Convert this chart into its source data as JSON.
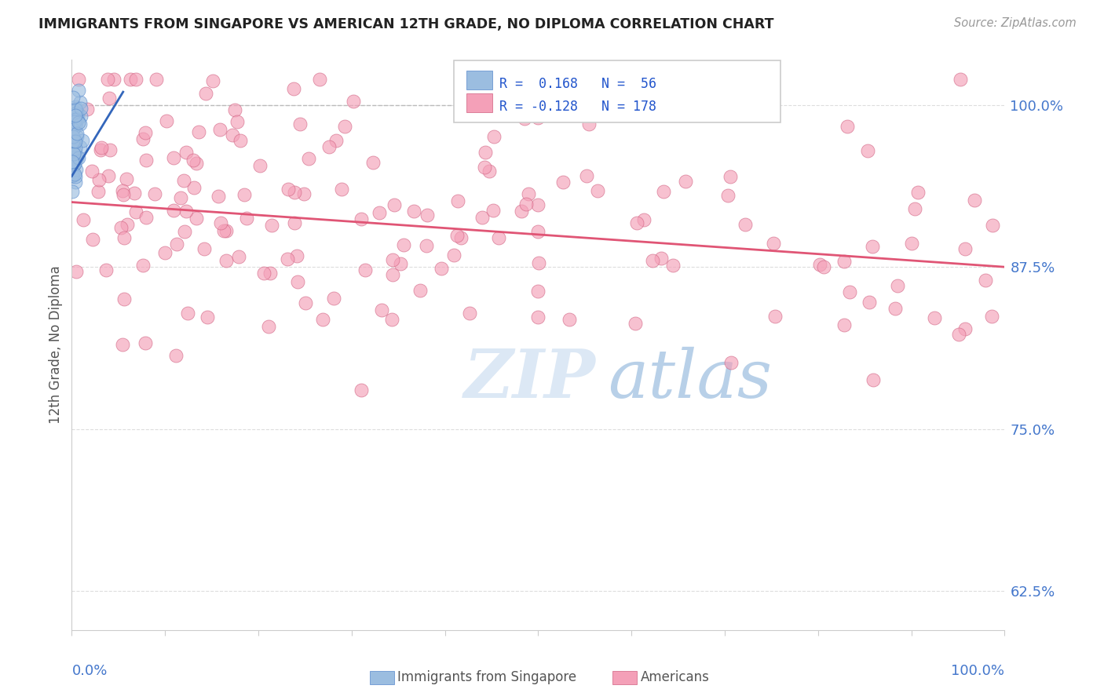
{
  "title": "IMMIGRANTS FROM SINGAPORE VS AMERICAN 12TH GRADE, NO DIPLOMA CORRELATION CHART",
  "source_text": "Source: ZipAtlas.com",
  "ylabel": "12th Grade, No Diploma",
  "blue_color": "#9bbde0",
  "blue_edge_color": "#5588cc",
  "pink_color": "#f4a0b8",
  "pink_edge_color": "#d06080",
  "blue_line_color": "#3366bb",
  "pink_line_color": "#e05575",
  "right_ytick_labels": [
    "62.5%",
    "75.0%",
    "87.5%",
    "100.0%"
  ],
  "right_ytick_values": [
    0.625,
    0.75,
    0.875,
    1.0
  ],
  "watermark_zip": "ZIP",
  "watermark_atlas": "atlas",
  "xmin": 0.0,
  "xmax": 1.0,
  "ymin": 0.595,
  "ymax": 1.035,
  "blue_r": 0.168,
  "blue_n": 56,
  "pink_r": -0.128,
  "pink_n": 178
}
